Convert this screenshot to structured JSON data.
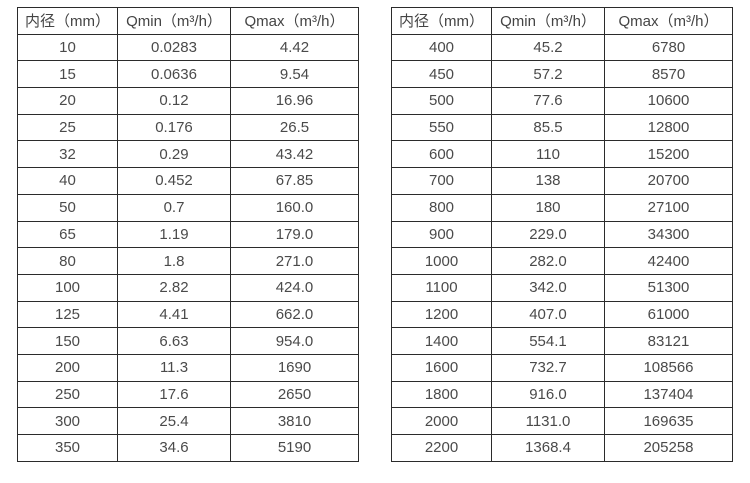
{
  "headers": [
    "内径（mm）",
    "Qmin（m³/h）",
    "Qmax（m³/h）"
  ],
  "left_table": {
    "rows": [
      [
        "10",
        "0.0283",
        "4.42"
      ],
      [
        "15",
        "0.0636",
        "9.54"
      ],
      [
        "20",
        "0.12",
        "16.96"
      ],
      [
        "25",
        "0.176",
        "26.5"
      ],
      [
        "32",
        "0.29",
        "43.42"
      ],
      [
        "40",
        "0.452",
        "67.85"
      ],
      [
        "50",
        "0.7",
        "160.0"
      ],
      [
        "65",
        "1.19",
        "179.0"
      ],
      [
        "80",
        "1.8",
        "271.0"
      ],
      [
        "100",
        "2.82",
        "424.0"
      ],
      [
        "125",
        "4.41",
        "662.0"
      ],
      [
        "150",
        "6.63",
        "954.0"
      ],
      [
        "200",
        "11.3",
        "1690"
      ],
      [
        "250",
        "17.6",
        "2650"
      ],
      [
        "300",
        "25.4",
        "3810"
      ],
      [
        "350",
        "34.6",
        "5190"
      ]
    ]
  },
  "right_table": {
    "rows": [
      [
        "400",
        "45.2",
        "6780"
      ],
      [
        "450",
        "57.2",
        "8570"
      ],
      [
        "500",
        "77.6",
        "10600"
      ],
      [
        "550",
        "85.5",
        "12800"
      ],
      [
        "600",
        "110",
        "15200"
      ],
      [
        "700",
        "138",
        "20700"
      ],
      [
        "800",
        "180",
        "27100"
      ],
      [
        "900",
        "229.0",
        "34300"
      ],
      [
        "1000",
        "282.0",
        "42400"
      ],
      [
        "1100",
        "342.0",
        "51300"
      ],
      [
        "1200",
        "407.0",
        "61000"
      ],
      [
        "1400",
        "554.1",
        "83121"
      ],
      [
        "1600",
        "732.7",
        "108566"
      ],
      [
        "1800",
        "916.0",
        "137404"
      ],
      [
        "2000",
        "1131.0",
        "169635"
      ],
      [
        "2200",
        "1368.4",
        "205258"
      ]
    ]
  },
  "colors": {
    "border": "#2b2b2b",
    "text": "#4a4a4a",
    "background": "#ffffff"
  }
}
